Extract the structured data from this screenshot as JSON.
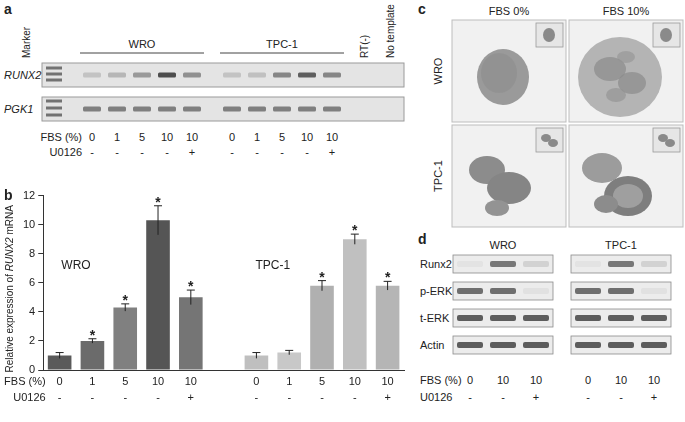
{
  "panel_a": {
    "label": "a",
    "marker_label": "Marker",
    "genes": [
      "RUNX2",
      "PGK1"
    ],
    "groups": [
      "WRO",
      "TPC-1"
    ],
    "fbs_label": "FBS (%)",
    "fbs": [
      0,
      1,
      5,
      10,
      10
    ],
    "u0126_label": "U0126",
    "u0126": [
      "-",
      "-",
      "-",
      "-",
      "+"
    ],
    "controls": [
      "RT(-)",
      "No template"
    ]
  },
  "chart_data": {
    "type": "bar",
    "panel_label": "b",
    "y_label": "Relative expression of RUNX2 mRNA",
    "groups": [
      "WRO",
      "TPC-1"
    ],
    "category_label": "FBS (%)",
    "categories": [
      0,
      1,
      5,
      10,
      10,
      null,
      0,
      1,
      5,
      10,
      10
    ],
    "u0126_label": "U0126",
    "u0126": [
      "-",
      "-",
      "-",
      "-",
      "+",
      null,
      "-",
      "-",
      "-",
      "-",
      "+"
    ],
    "values": [
      1.0,
      2.0,
      4.3,
      10.3,
      5.0,
      null,
      1.0,
      1.2,
      5.8,
      9.0,
      5.8
    ],
    "errors": [
      0.2,
      0.15,
      0.25,
      1.0,
      0.5,
      null,
      0.2,
      0.15,
      0.35,
      0.35,
      0.3
    ],
    "significance": [
      null,
      "*",
      "*",
      "*",
      "*",
      null,
      null,
      null,
      "*",
      "*",
      "*"
    ],
    "colors": [
      "#5a5a5a",
      "#6b6b6b",
      "#808080",
      "#555555",
      "#757575",
      null,
      "#bfbfbf",
      "#c8c8c8",
      "#b0b0b0",
      "#c0c0c0",
      "#b5b5b5"
    ],
    "ylim": [
      0,
      12
    ],
    "yticks": [
      0,
      2,
      4,
      6,
      8,
      10,
      12
    ],
    "grid": false
  },
  "panel_c": {
    "label": "c",
    "columns": [
      "FBS 0%",
      "FBS 10%"
    ],
    "rows": [
      "WRO",
      "TPC-1"
    ]
  },
  "panel_d": {
    "label": "d",
    "groups": [
      "WRO",
      "TPC-1"
    ],
    "proteins": [
      "Runx2",
      "p-ERK",
      "t-ERK",
      "Actin"
    ],
    "fbs_label": "FBS (%)",
    "fbs": [
      0,
      10,
      10
    ],
    "u0126_label": "U0126",
    "u0126": [
      "-",
      "-",
      "+"
    ]
  }
}
